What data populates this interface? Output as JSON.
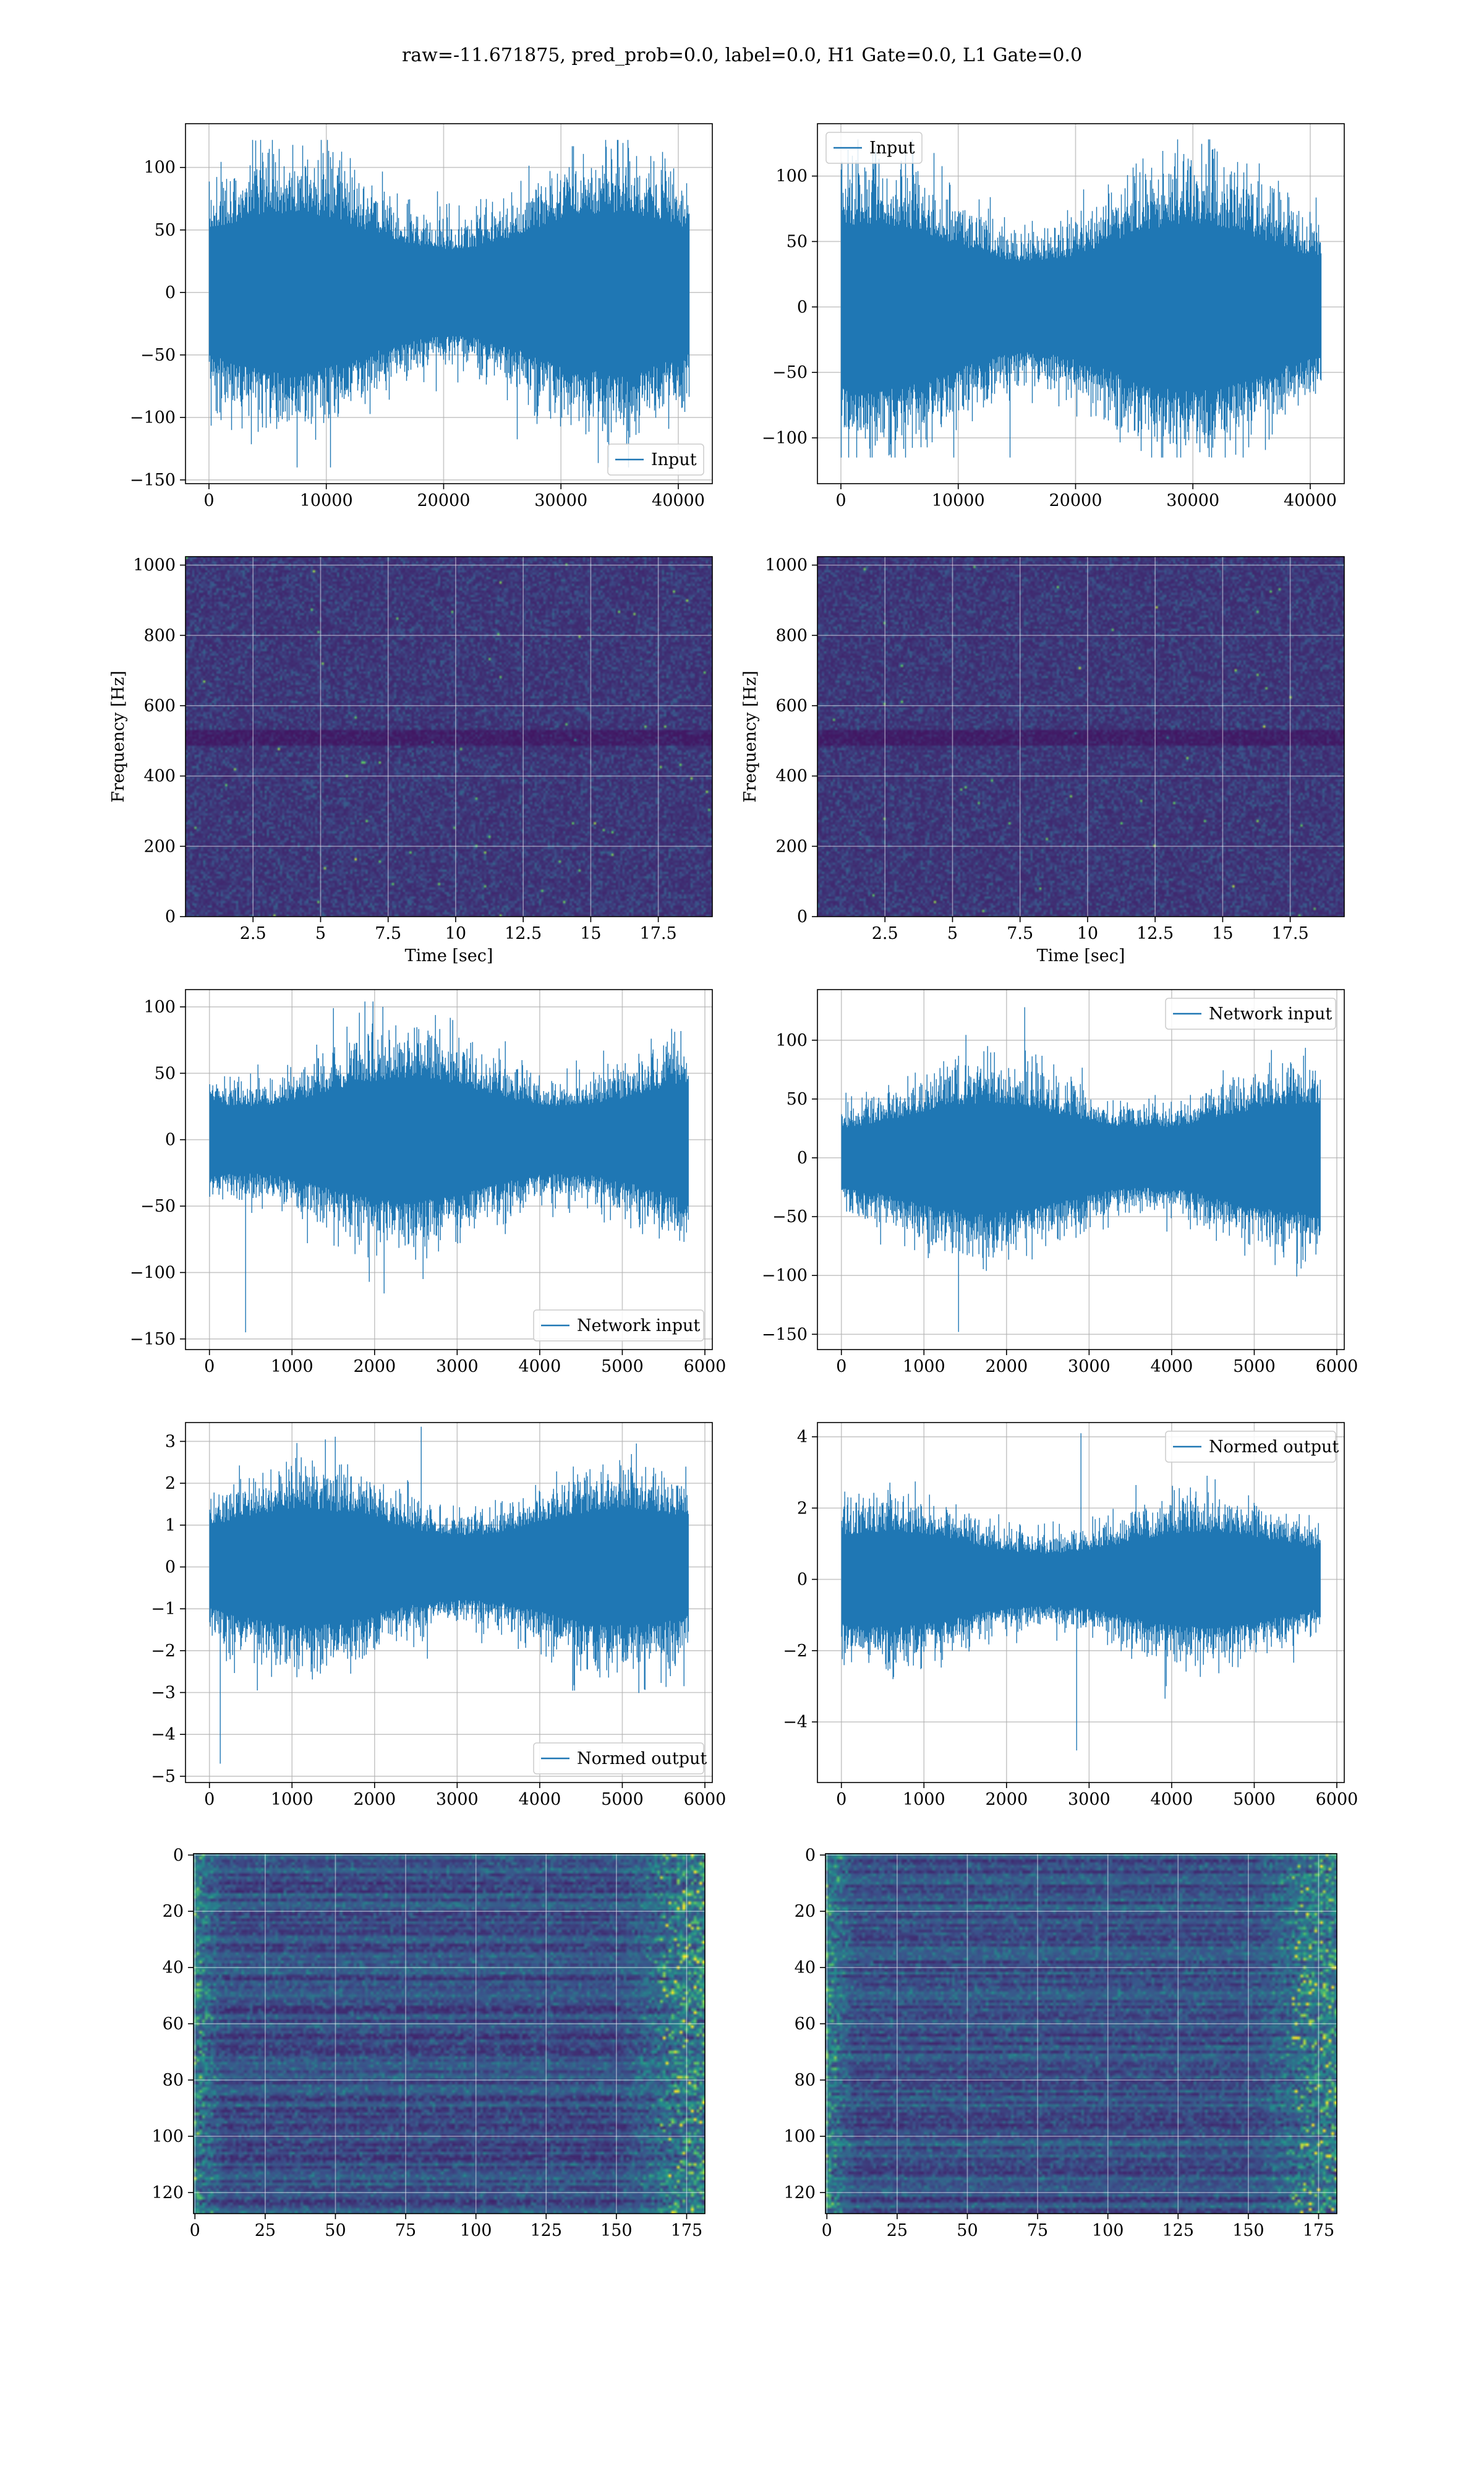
{
  "figure": {
    "suptitle": "raw=-11.671875, pred_prob=0.0, label=0.0, H1 Gate=0.0, L1 Gate=0.0"
  },
  "colors": {
    "line": "#1f77b4",
    "grid": "#b0b0b0",
    "viridis": [
      "#440154",
      "#3b528b",
      "#21918c",
      "#5ec962",
      "#fde725"
    ]
  },
  "chart_data": [
    {
      "id": "input-h1",
      "type": "line",
      "series": [
        {
          "name": "Input",
          "kind": "noise",
          "n": 40960,
          "amp": 55,
          "spike_max": 122,
          "spike_min": -140
        }
      ],
      "xlim": [
        -2000,
        42900
      ],
      "ylim": [
        -153,
        135
      ],
      "xticks": [
        0,
        10000,
        20000,
        30000,
        40000
      ],
      "yticks": [
        -150,
        -100,
        -50,
        0,
        50,
        100
      ],
      "xlabel": "",
      "ylabel": "",
      "grid": true,
      "legend": "lower right"
    },
    {
      "id": "input-l1",
      "type": "line",
      "series": [
        {
          "name": "Input",
          "kind": "noise",
          "n": 40960,
          "amp": 55,
          "spike_max": 128,
          "spike_min": -115
        }
      ],
      "xlim": [
        -2000,
        42900
      ],
      "ylim": [
        -135,
        140
      ],
      "xticks": [
        0,
        10000,
        20000,
        30000,
        40000
      ],
      "yticks": [
        -100,
        -50,
        0,
        50,
        100
      ],
      "xlabel": "",
      "ylabel": "",
      "grid": true,
      "legend": "upper left"
    },
    {
      "id": "spectrogram-h1",
      "type": "heatmap",
      "xlim": [
        0,
        19.5
      ],
      "ylim": [
        0,
        1024
      ],
      "xticks": [
        2.5,
        5.0,
        7.5,
        10.0,
        12.5,
        15.0,
        17.5
      ],
      "yticks": [
        0,
        200,
        400,
        600,
        800,
        1000
      ],
      "xlabel": "Time [sec]",
      "ylabel": "Frequency [Hz]",
      "grid": true,
      "colormap": "viridis"
    },
    {
      "id": "spectrogram-l1",
      "type": "heatmap",
      "xlim": [
        0,
        19.5
      ],
      "ylim": [
        0,
        1024
      ],
      "xticks": [
        2.5,
        5.0,
        7.5,
        10.0,
        12.5,
        15.0,
        17.5
      ],
      "yticks": [
        0,
        200,
        400,
        600,
        800,
        1000
      ],
      "xlabel": "Time [sec]",
      "ylabel": "Frequency [Hz]",
      "grid": true,
      "colormap": "viridis"
    },
    {
      "id": "network-h1",
      "type": "line",
      "series": [
        {
          "name": "Network input",
          "kind": "noise",
          "n": 5800,
          "amp": 40,
          "spike_max": 104,
          "spike_min": -145
        }
      ],
      "xlim": [
        -290,
        6090
      ],
      "ylim": [
        -158,
        113
      ],
      "xticks": [
        0,
        1000,
        2000,
        3000,
        4000,
        5000,
        6000
      ],
      "yticks": [
        -150,
        -100,
        -50,
        0,
        50,
        100
      ],
      "xlabel": "",
      "ylabel": "",
      "grid": true,
      "legend": "lower right"
    },
    {
      "id": "network-l1",
      "type": "line",
      "series": [
        {
          "name": "Network input",
          "kind": "noise",
          "n": 5800,
          "amp": 40,
          "spike_max": 128,
          "spike_min": -148
        }
      ],
      "xlim": [
        -290,
        6090
      ],
      "ylim": [
        -163,
        143
      ],
      "xticks": [
        0,
        1000,
        2000,
        3000,
        4000,
        5000,
        6000
      ],
      "yticks": [
        -150,
        -100,
        -50,
        0,
        50,
        100
      ],
      "xlabel": "",
      "ylabel": "",
      "grid": true,
      "legend": "upper right"
    },
    {
      "id": "normed-h1",
      "type": "line",
      "series": [
        {
          "name": "Normed output",
          "kind": "noise",
          "n": 5800,
          "amp": 1.2,
          "spike_max": 3.35,
          "spike_min": -4.7
        }
      ],
      "xlim": [
        -290,
        6090
      ],
      "ylim": [
        -5.15,
        3.45
      ],
      "xticks": [
        0,
        1000,
        2000,
        3000,
        4000,
        5000,
        6000
      ],
      "yticks": [
        -5,
        -4,
        -3,
        -2,
        -1,
        0,
        1,
        2,
        3
      ],
      "xlabel": "",
      "ylabel": "",
      "grid": true,
      "legend": "lower right"
    },
    {
      "id": "normed-l1",
      "type": "line",
      "series": [
        {
          "name": "Normed output",
          "kind": "noise",
          "n": 5800,
          "amp": 1.15,
          "spike_max": 4.1,
          "spike_min": -4.8
        }
      ],
      "xlim": [
        -290,
        6090
      ],
      "ylim": [
        -5.7,
        4.4
      ],
      "xticks": [
        0,
        1000,
        2000,
        3000,
        4000,
        5000,
        6000
      ],
      "yticks": [
        -4,
        -2,
        0,
        2,
        4
      ],
      "xlabel": "",
      "ylabel": "",
      "grid": true,
      "legend": "upper right"
    },
    {
      "id": "features-h1",
      "type": "heatmap",
      "xlim": [
        -0.5,
        181.5
      ],
      "ylim": [
        -0.5,
        127.5
      ],
      "y_inverted": true,
      "xticks": [
        0,
        25,
        50,
        75,
        100,
        125,
        150,
        175
      ],
      "yticks": [
        0,
        20,
        40,
        60,
        80,
        100,
        120
      ],
      "xlabel": "",
      "ylabel": "",
      "grid": true,
      "colormap": "viridis"
    },
    {
      "id": "features-l1",
      "type": "heatmap",
      "xlim": [
        -0.5,
        181.5
      ],
      "ylim": [
        -0.5,
        127.5
      ],
      "y_inverted": true,
      "xticks": [
        0,
        25,
        50,
        75,
        100,
        125,
        150,
        175
      ],
      "yticks": [
        0,
        20,
        40,
        60,
        80,
        100,
        120
      ],
      "xlabel": "",
      "ylabel": "",
      "grid": true,
      "colormap": "viridis"
    }
  ]
}
